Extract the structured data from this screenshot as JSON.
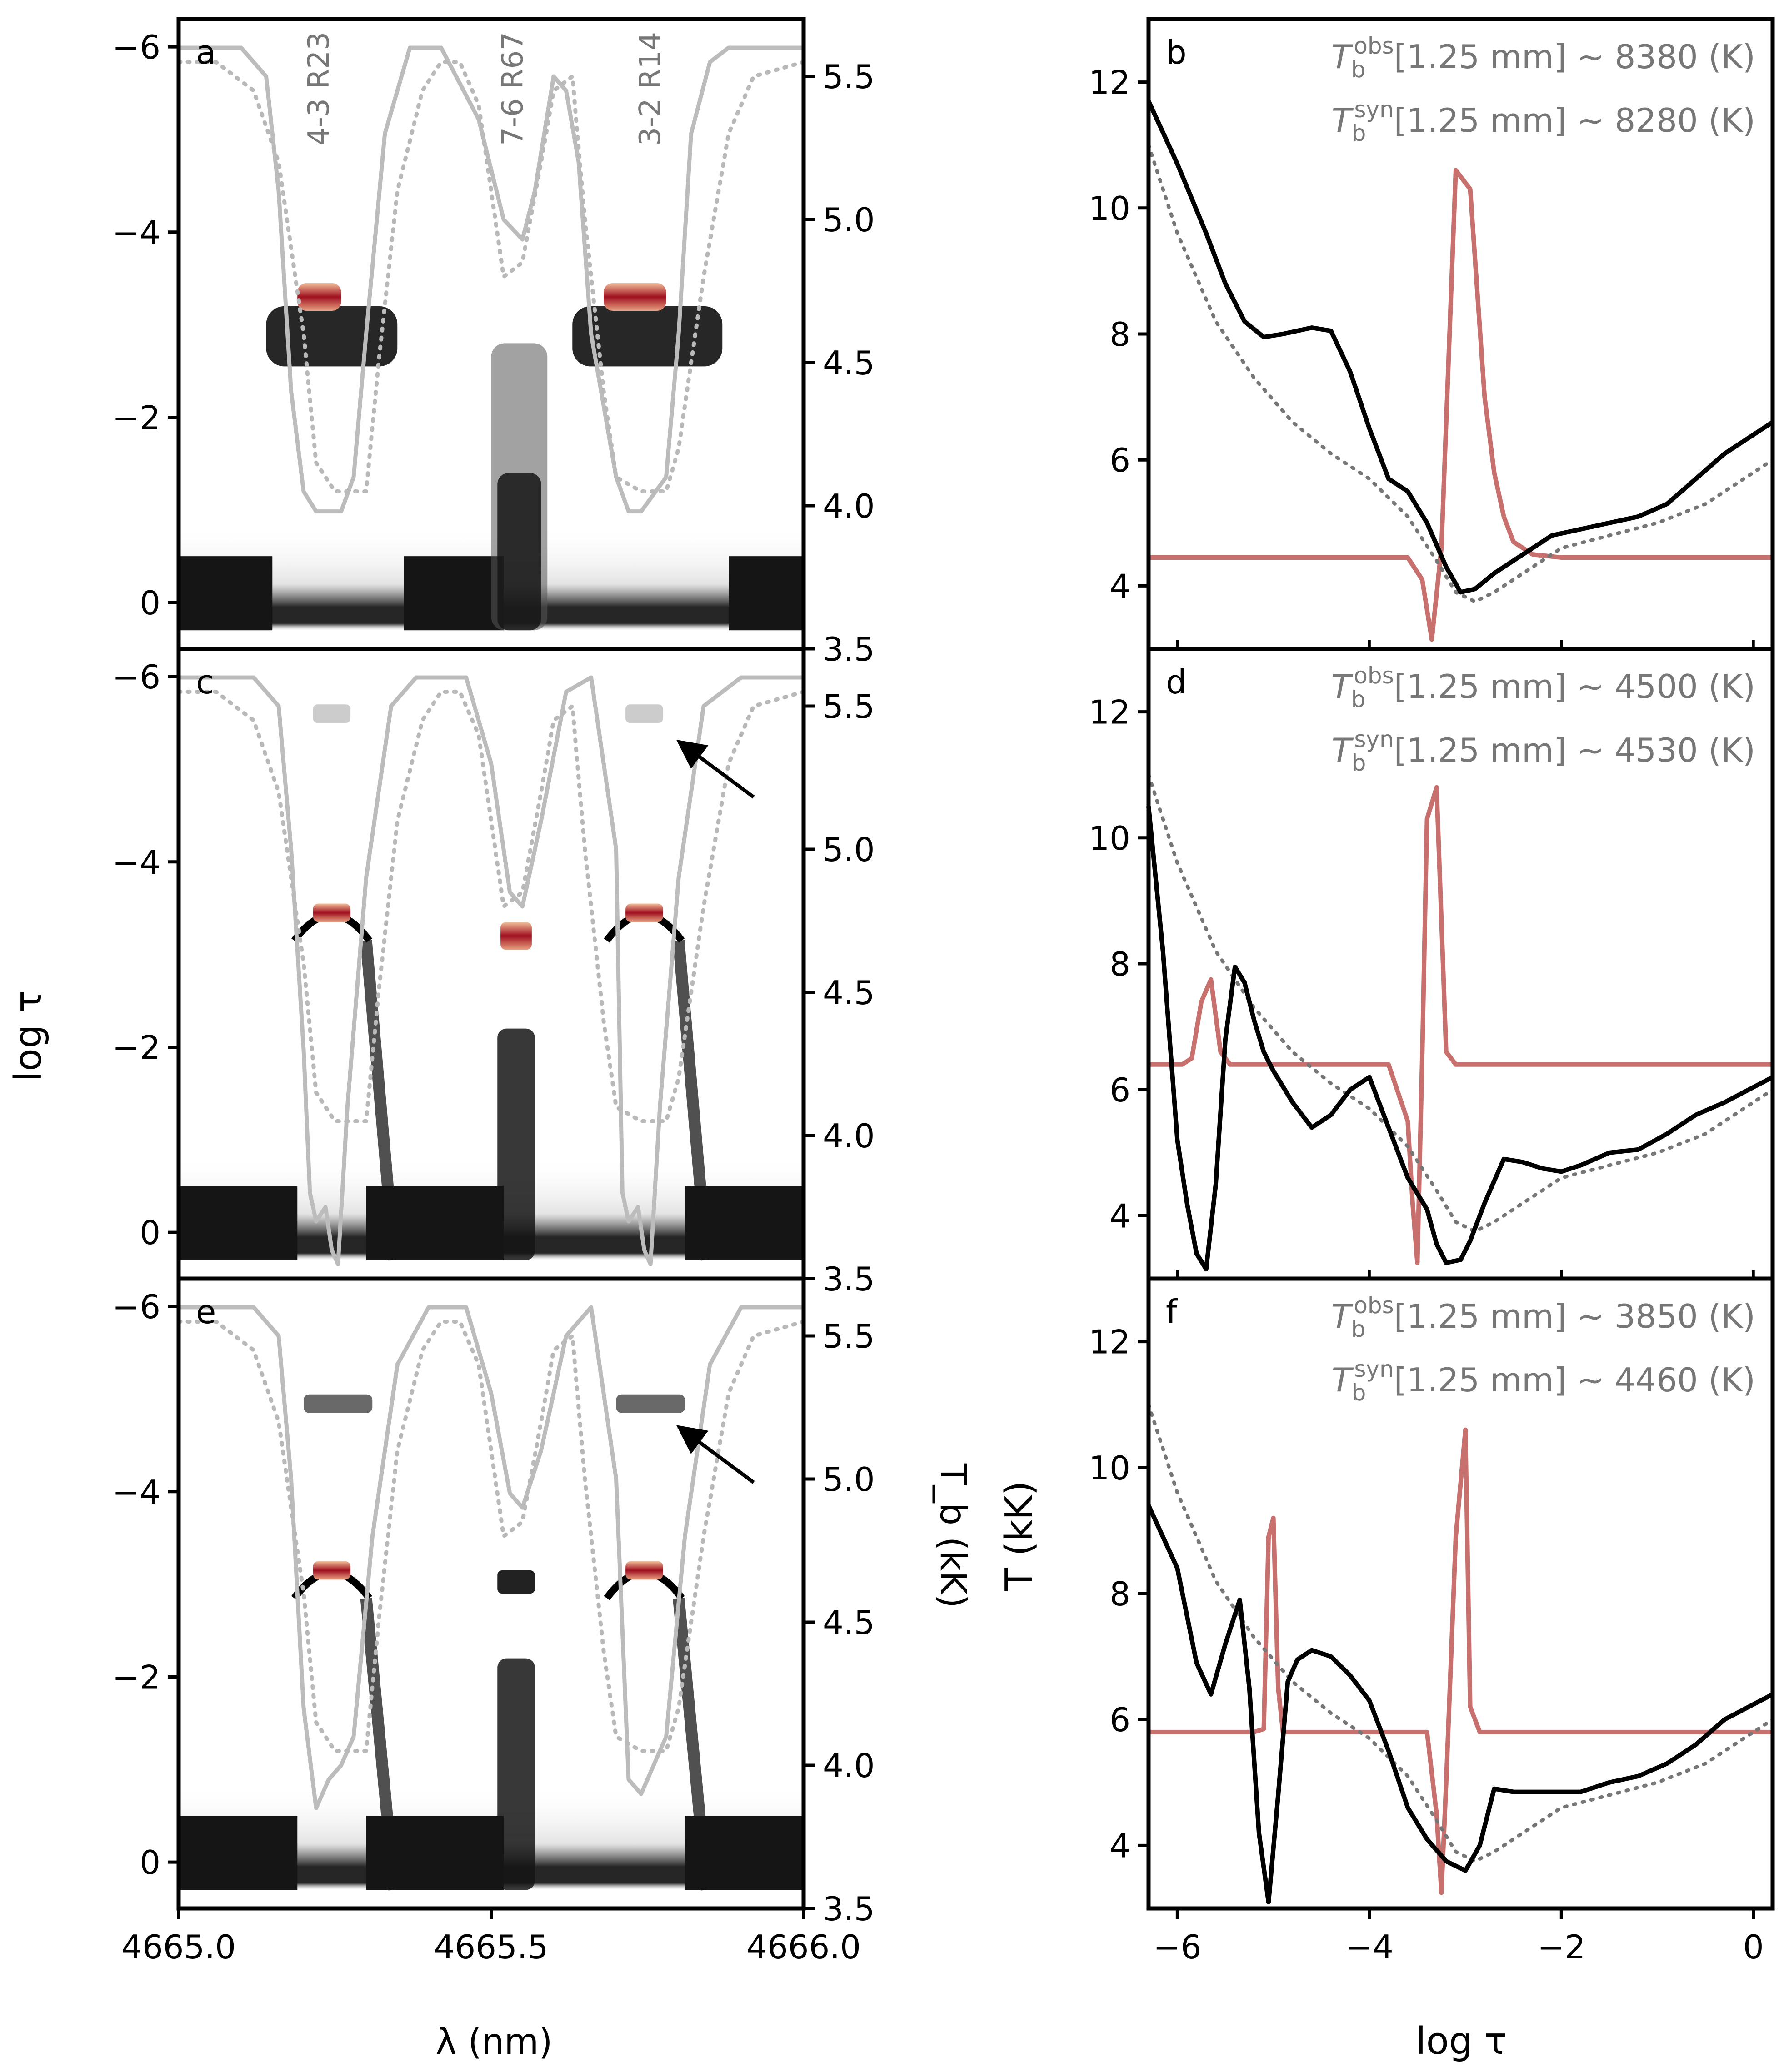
{
  "figure": {
    "left_xlabel": "λ (nm)",
    "left_ylabel": "log τ",
    "right_tb_label": "T_b (kK)",
    "right_xlabel": "log τ",
    "right_ylabel": "T (kK)"
  },
  "colors": {
    "frame": "#000000",
    "syn_spectrum": "#bcbcbc",
    "obs_spectrum": "#b9b9b9",
    "temperature": "#000000",
    "reference_atmosphere": "#777777",
    "contribution": "#c8706e",
    "heat_dark": "#151515",
    "heat_red": "#a01020",
    "line_label": "#777777",
    "annotation": "#777777"
  },
  "chart_data": [
    {
      "type": "heatmap",
      "panel": "a",
      "xlabel": "λ (nm)",
      "ylabel": "log τ",
      "xlim": [
        4665.0,
        4666.0
      ],
      "ylim": [
        0.5,
        -6.3
      ],
      "yticks": [
        0,
        -2,
        -4,
        -6
      ],
      "right_ylim": [
        3.5,
        5.7
      ],
      "right_yticks": [
        3.5,
        4.0,
        4.5,
        5.0,
        5.5
      ],
      "line_labels": [
        "4-3 R23",
        "7-6 R67",
        "3-2 R14"
      ],
      "line_label_x": [
        4665.24,
        4665.55,
        4665.77
      ],
      "series": [
        {
          "name": "synthetic T_b (kK)",
          "style": "solid",
          "x": [
            4665.0,
            4665.1,
            4665.14,
            4665.16,
            4665.18,
            4665.2,
            4665.22,
            4665.26,
            4665.28,
            4665.3,
            4665.33,
            4665.37,
            4665.42,
            4665.48,
            4665.52,
            4665.55,
            4665.57,
            4665.6,
            4665.62,
            4665.64,
            4665.66,
            4665.7,
            4665.72,
            4665.74,
            4665.78,
            4665.8,
            4665.82,
            4665.85,
            4665.88,
            4665.92,
            4666.0
          ],
          "values": [
            5.6,
            5.6,
            5.5,
            5.1,
            4.4,
            4.05,
            3.98,
            3.98,
            4.1,
            4.6,
            5.3,
            5.6,
            5.6,
            5.35,
            5.0,
            4.93,
            5.1,
            5.5,
            5.45,
            5.2,
            4.6,
            4.1,
            3.98,
            3.98,
            4.1,
            4.6,
            5.3,
            5.55,
            5.6,
            5.6,
            5.6
          ]
        },
        {
          "name": "observed T_b (kK)",
          "style": "dotted",
          "x": [
            4665.0,
            4665.06,
            4665.12,
            4665.16,
            4665.2,
            4665.22,
            4665.25,
            4665.27,
            4665.3,
            4665.32,
            4665.35,
            4665.39,
            4665.42,
            4665.45,
            4665.48,
            4665.5,
            4665.52,
            4665.55,
            4665.58,
            4665.6,
            4665.63,
            4665.65,
            4665.68,
            4665.7,
            4665.74,
            4665.78,
            4665.8,
            4665.84,
            4665.88,
            4665.92,
            4666.0
          ],
          "values": [
            5.55,
            5.55,
            5.45,
            5.2,
            4.6,
            4.15,
            4.05,
            4.05,
            4.05,
            4.5,
            5.1,
            5.45,
            5.55,
            5.55,
            5.4,
            5.1,
            4.8,
            4.85,
            5.2,
            5.45,
            5.5,
            5.0,
            4.4,
            4.1,
            4.05,
            4.05,
            4.2,
            4.8,
            5.3,
            5.5,
            5.55
          ]
        }
      ]
    },
    {
      "type": "line",
      "panel": "b",
      "xlabel": "log τ",
      "ylabel": "T (kK)",
      "xlim": [
        -6.3,
        0.2
      ],
      "ylim": [
        3.0,
        13.0
      ],
      "xticks": [
        -6,
        -4,
        -2,
        0
      ],
      "yticks": [
        4,
        6,
        8,
        10,
        12
      ],
      "annotation": [
        "T_b^obs[1.25 mm] ~ 8380 (K)",
        "T_b^syn[1.25 mm] ~ 8280 (K)"
      ],
      "series": [
        {
          "name": "temperature",
          "style": "solid",
          "x": [
            -6.3,
            -6.0,
            -5.7,
            -5.5,
            -5.3,
            -5.1,
            -4.9,
            -4.6,
            -4.4,
            -4.2,
            -4.0,
            -3.8,
            -3.6,
            -3.4,
            -3.2,
            -3.05,
            -2.9,
            -2.7,
            -2.4,
            -2.1,
            -1.8,
            -1.5,
            -1.2,
            -0.9,
            -0.6,
            -0.3,
            0.2
          ],
          "values": [
            11.7,
            10.7,
            9.6,
            8.8,
            8.2,
            7.95,
            8.0,
            8.1,
            8.05,
            7.4,
            6.5,
            5.7,
            5.5,
            5.0,
            4.3,
            3.9,
            3.95,
            4.2,
            4.5,
            4.8,
            4.9,
            5.0,
            5.1,
            5.3,
            5.7,
            6.1,
            6.6
          ]
        },
        {
          "name": "reference atmosphere",
          "style": "dotted",
          "x": [
            -6.3,
            -6.0,
            -5.6,
            -5.2,
            -4.8,
            -4.4,
            -4.0,
            -3.6,
            -3.3,
            -3.1,
            -2.9,
            -2.7,
            -2.4,
            -2.0,
            -1.5,
            -1.0,
            -0.5,
            0.2
          ],
          "values": [
            11.0,
            9.6,
            8.2,
            7.3,
            6.6,
            6.1,
            5.7,
            5.1,
            4.4,
            3.9,
            3.75,
            3.9,
            4.2,
            4.6,
            4.8,
            5.0,
            5.3,
            6.0
          ]
        },
        {
          "name": "contribution function",
          "style": "solid",
          "x": [
            -6.3,
            -4.0,
            -3.6,
            -3.45,
            -3.35,
            -3.25,
            -3.1,
            -2.95,
            -2.8,
            -2.7,
            -2.6,
            -2.5,
            -2.3,
            -2.0,
            0.2
          ],
          "values": [
            4.45,
            4.45,
            4.45,
            4.1,
            3.15,
            4.6,
            10.6,
            10.3,
            7.0,
            5.8,
            5.1,
            4.7,
            4.5,
            4.45,
            4.45
          ]
        }
      ]
    },
    {
      "type": "heatmap",
      "panel": "c",
      "xlabel": "λ (nm)",
      "ylabel": "log τ",
      "xlim": [
        4665.0,
        4666.0
      ],
      "ylim": [
        0.5,
        -6.3
      ],
      "yticks": [
        0,
        -2,
        -4,
        -6
      ],
      "right_ylim": [
        3.5,
        5.7
      ],
      "right_yticks": [
        3.5,
        4.0,
        4.5,
        5.0,
        5.5
      ],
      "series": [
        {
          "name": "synthetic T_b (kK)",
          "style": "solid",
          "x": [
            4665.0,
            4665.12,
            4665.16,
            4665.18,
            4665.2,
            4665.21,
            4665.22,
            4665.235,
            4665.245,
            4665.255,
            4665.27,
            4665.3,
            4665.34,
            4665.38,
            4665.46,
            4665.5,
            4665.53,
            4665.55,
            4665.58,
            4665.62,
            4665.66,
            4665.7,
            4665.71,
            4665.72,
            4665.735,
            4665.745,
            4665.755,
            4665.77,
            4665.8,
            4665.84,
            4665.9,
            4666.0
          ],
          "values": [
            5.6,
            5.6,
            5.5,
            5.0,
            4.3,
            3.8,
            3.7,
            3.75,
            3.6,
            3.55,
            4.1,
            4.9,
            5.5,
            5.6,
            5.6,
            5.3,
            4.85,
            4.8,
            5.1,
            5.55,
            5.6,
            5.0,
            3.8,
            3.7,
            3.75,
            3.6,
            3.55,
            4.1,
            4.9,
            5.5,
            5.6,
            5.6
          ]
        },
        {
          "name": "observed T_b (kK)",
          "style": "dotted",
          "x": [
            4665.0,
            4665.06,
            4665.12,
            4665.16,
            4665.2,
            4665.22,
            4665.25,
            4665.27,
            4665.3,
            4665.32,
            4665.35,
            4665.39,
            4665.42,
            4665.45,
            4665.48,
            4665.5,
            4665.52,
            4665.55,
            4665.58,
            4665.6,
            4665.63,
            4665.65,
            4665.68,
            4665.7,
            4665.74,
            4665.78,
            4665.8,
            4665.84,
            4665.88,
            4665.92,
            4666.0
          ],
          "values": [
            5.55,
            5.55,
            5.45,
            5.2,
            4.6,
            4.15,
            4.05,
            4.05,
            4.05,
            4.5,
            5.1,
            5.45,
            5.55,
            5.55,
            5.4,
            5.1,
            4.8,
            4.85,
            5.2,
            5.45,
            5.5,
            5.0,
            4.4,
            4.1,
            4.05,
            4.05,
            4.2,
            4.8,
            5.3,
            5.5,
            5.55
          ]
        }
      ]
    },
    {
      "type": "line",
      "panel": "d",
      "xlabel": "log τ",
      "ylabel": "T (kK)",
      "xlim": [
        -6.3,
        0.2
      ],
      "ylim": [
        3.0,
        13.0
      ],
      "xticks": [
        -6,
        -4,
        -2,
        0
      ],
      "yticks": [
        4,
        6,
        8,
        10,
        12
      ],
      "annotation": [
        "T_b^obs[1.25 mm] ~ 4500 (K)",
        "T_b^syn[1.25 mm] ~ 4530 (K)"
      ],
      "series": [
        {
          "name": "temperature",
          "style": "solid",
          "x": [
            -6.3,
            -6.15,
            -6.0,
            -5.9,
            -5.8,
            -5.7,
            -5.6,
            -5.5,
            -5.4,
            -5.3,
            -5.2,
            -5.1,
            -5.0,
            -4.8,
            -4.6,
            -4.4,
            -4.2,
            -4.0,
            -3.8,
            -3.6,
            -3.4,
            -3.3,
            -3.2,
            -3.05,
            -2.95,
            -2.8,
            -2.6,
            -2.4,
            -2.2,
            -2.0,
            -1.8,
            -1.5,
            -1.2,
            -0.9,
            -0.6,
            -0.3,
            0.2
          ],
          "values": [
            10.5,
            8.2,
            5.2,
            4.2,
            3.4,
            3.15,
            4.5,
            6.8,
            7.95,
            7.7,
            7.1,
            6.6,
            6.3,
            5.8,
            5.4,
            5.6,
            6.0,
            6.2,
            5.4,
            4.6,
            4.1,
            3.55,
            3.25,
            3.3,
            3.6,
            4.2,
            4.9,
            4.85,
            4.75,
            4.7,
            4.8,
            5.0,
            5.05,
            5.3,
            5.6,
            5.8,
            6.2
          ]
        },
        {
          "name": "reference atmosphere",
          "style": "dotted",
          "x": [
            -6.3,
            -6.0,
            -5.6,
            -5.2,
            -4.8,
            -4.4,
            -4.0,
            -3.6,
            -3.3,
            -3.1,
            -2.9,
            -2.7,
            -2.4,
            -2.0,
            -1.5,
            -1.0,
            -0.5,
            0.2
          ],
          "values": [
            11.0,
            9.6,
            8.2,
            7.3,
            6.6,
            6.1,
            5.7,
            5.1,
            4.4,
            3.9,
            3.75,
            3.9,
            4.2,
            4.6,
            4.8,
            5.0,
            5.3,
            6.0
          ]
        },
        {
          "name": "contribution function",
          "style": "solid",
          "x": [
            -6.3,
            -5.95,
            -5.85,
            -5.75,
            -5.65,
            -5.55,
            -5.45,
            -3.8,
            -3.6,
            -3.55,
            -3.5,
            -3.45,
            -3.4,
            -3.3,
            -3.2,
            -3.1,
            -3.0,
            0.2
          ],
          "values": [
            6.4,
            6.4,
            6.5,
            7.4,
            7.75,
            6.6,
            6.4,
            6.4,
            5.5,
            4.2,
            3.25,
            6.5,
            10.3,
            10.8,
            6.6,
            6.4,
            6.4,
            6.4
          ]
        }
      ]
    },
    {
      "type": "heatmap",
      "panel": "e",
      "xlabel": "λ (nm)",
      "ylabel": "log τ",
      "xlim": [
        4665.0,
        4666.0
      ],
      "ylim": [
        0.5,
        -6.3
      ],
      "yticks": [
        0,
        -2,
        -4,
        -6
      ],
      "xticks": [
        4665.0,
        4665.5,
        4666.0
      ],
      "right_ylim": [
        3.5,
        5.7
      ],
      "right_yticks": [
        3.5,
        4.0,
        4.5,
        5.0,
        5.5
      ],
      "series": [
        {
          "name": "synthetic T_b (kK)",
          "style": "solid",
          "x": [
            4665.0,
            4665.12,
            4665.16,
            4665.18,
            4665.2,
            4665.22,
            4665.24,
            4665.26,
            4665.28,
            4665.31,
            4665.35,
            4665.4,
            4665.46,
            4665.5,
            4665.53,
            4665.55,
            4665.58,
            4665.62,
            4665.66,
            4665.7,
            4665.72,
            4665.74,
            4665.76,
            4665.78,
            4665.81,
            4665.85,
            4665.9,
            4666.0
          ],
          "values": [
            5.6,
            5.6,
            5.5,
            5.0,
            4.2,
            3.85,
            3.95,
            4.0,
            4.1,
            4.8,
            5.4,
            5.6,
            5.6,
            5.3,
            4.95,
            4.9,
            5.1,
            5.5,
            5.6,
            5.0,
            3.95,
            3.9,
            4.0,
            4.1,
            4.8,
            5.4,
            5.6,
            5.6
          ]
        },
        {
          "name": "observed T_b (kK)",
          "style": "dotted",
          "x": [
            4665.0,
            4665.06,
            4665.12,
            4665.16,
            4665.2,
            4665.22,
            4665.25,
            4665.27,
            4665.3,
            4665.32,
            4665.35,
            4665.39,
            4665.42,
            4665.45,
            4665.48,
            4665.5,
            4665.52,
            4665.55,
            4665.58,
            4665.6,
            4665.63,
            4665.65,
            4665.68,
            4665.7,
            4665.74,
            4665.78,
            4665.8,
            4665.84,
            4665.88,
            4665.92,
            4666.0
          ],
          "values": [
            5.55,
            5.55,
            5.45,
            5.2,
            4.6,
            4.15,
            4.05,
            4.05,
            4.05,
            4.5,
            5.1,
            5.45,
            5.55,
            5.55,
            5.4,
            5.1,
            4.8,
            4.85,
            5.2,
            5.45,
            5.5,
            5.0,
            4.4,
            4.1,
            4.05,
            4.05,
            4.2,
            4.8,
            5.3,
            5.5,
            5.55
          ]
        }
      ]
    },
    {
      "type": "line",
      "panel": "f",
      "xlabel": "log τ",
      "ylabel": "T (kK)",
      "xlim": [
        -6.3,
        0.2
      ],
      "ylim": [
        3.0,
        13.0
      ],
      "xticks": [
        -6,
        -4,
        -2,
        0
      ],
      "yticks": [
        4,
        6,
        8,
        10,
        12
      ],
      "annotation": [
        "T_b^obs[1.25 mm] ~ 3850 (K)",
        "T_b^syn[1.25 mm] ~ 4460 (K)"
      ],
      "series": [
        {
          "name": "temperature",
          "style": "solid",
          "x": [
            -6.3,
            -6.0,
            -5.8,
            -5.65,
            -5.5,
            -5.35,
            -5.25,
            -5.15,
            -5.05,
            -4.95,
            -4.85,
            -4.75,
            -4.6,
            -4.4,
            -4.2,
            -4.0,
            -3.8,
            -3.6,
            -3.4,
            -3.2,
            -3.0,
            -2.85,
            -2.7,
            -2.5,
            -2.2,
            -1.8,
            -1.5,
            -1.2,
            -0.9,
            -0.6,
            -0.3,
            0.2
          ],
          "values": [
            9.4,
            8.4,
            6.9,
            6.4,
            7.2,
            7.9,
            6.5,
            4.2,
            3.1,
            4.8,
            6.6,
            6.95,
            7.1,
            7.0,
            6.7,
            6.3,
            5.5,
            4.6,
            4.1,
            3.75,
            3.6,
            4.0,
            4.9,
            4.85,
            4.85,
            4.85,
            5.0,
            5.1,
            5.3,
            5.6,
            6.0,
            6.4
          ]
        },
        {
          "name": "reference atmosphere",
          "style": "dotted",
          "x": [
            -6.3,
            -6.0,
            -5.6,
            -5.2,
            -4.8,
            -4.4,
            -4.0,
            -3.6,
            -3.3,
            -3.1,
            -2.9,
            -2.7,
            -2.4,
            -2.0,
            -1.5,
            -1.0,
            -0.5,
            0.2
          ],
          "values": [
            11.0,
            9.6,
            8.2,
            7.3,
            6.6,
            6.1,
            5.7,
            5.1,
            4.4,
            3.9,
            3.75,
            3.9,
            4.2,
            4.6,
            4.8,
            5.0,
            5.3,
            6.0
          ]
        },
        {
          "name": "contribution function",
          "style": "solid",
          "x": [
            -6.3,
            -5.2,
            -5.1,
            -5.05,
            -5.0,
            -4.95,
            -4.9,
            -3.8,
            -3.4,
            -3.3,
            -3.25,
            -3.2,
            -3.1,
            -3.0,
            -2.95,
            -2.85,
            0.2
          ],
          "values": [
            5.8,
            5.8,
            5.85,
            8.9,
            9.2,
            6.5,
            5.8,
            5.8,
            5.8,
            4.5,
            3.25,
            5.0,
            8.9,
            10.6,
            6.2,
            5.8,
            5.8
          ]
        }
      ]
    }
  ]
}
